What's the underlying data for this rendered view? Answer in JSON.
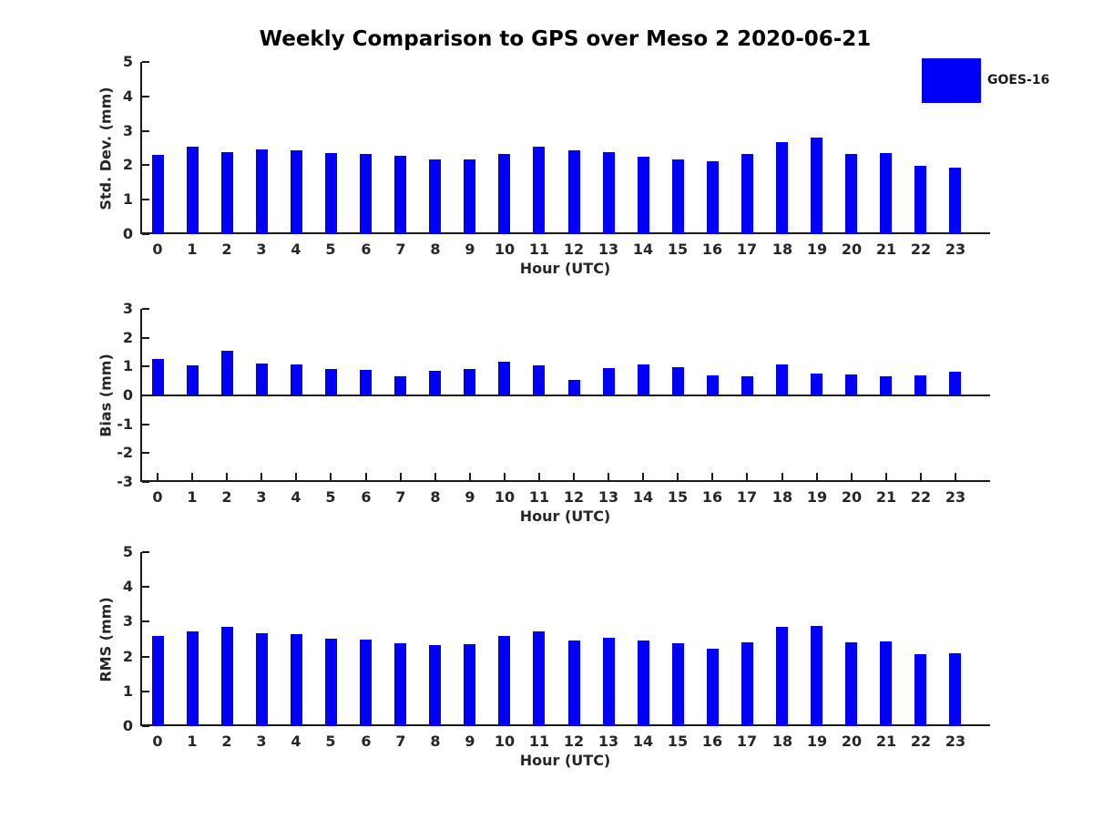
{
  "figure": {
    "title": "Weekly Comparison to GPS over Meso 2 2020-06-21",
    "legend": {
      "label": "GOES-16",
      "swatch_color": "#0000fa"
    },
    "colors": {
      "bar": "#0000fa",
      "axis": "#1a1a1a",
      "text": "#262626",
      "background": "#ffffff"
    }
  },
  "chart_data": [
    {
      "type": "bar",
      "title": "Weekly Comparison to GPS over Meso 2 2020-06-21",
      "series_name": "GOES-16",
      "xlabel": "Hour (UTC)",
      "ylabel": "Std. Dev. (mm)",
      "categories": [
        "0",
        "1",
        "2",
        "3",
        "4",
        "5",
        "6",
        "7",
        "8",
        "9",
        "10",
        "11",
        "12",
        "13",
        "14",
        "15",
        "16",
        "17",
        "18",
        "19",
        "20",
        "21",
        "22",
        "23"
      ],
      "values": [
        2.3,
        2.55,
        2.39,
        2.46,
        2.43,
        2.36,
        2.33,
        2.27,
        2.17,
        2.17,
        2.34,
        2.54,
        2.44,
        2.38,
        2.24,
        2.18,
        2.12,
        2.33,
        2.67,
        2.8,
        2.34,
        2.36,
        1.99,
        1.94
      ],
      "ylim": [
        0,
        5
      ],
      "yticks": [
        0,
        1,
        2,
        3,
        4,
        5
      ],
      "grid": false,
      "legend_position": "top-right"
    },
    {
      "type": "bar",
      "series_name": "GOES-16",
      "xlabel": "Hour (UTC)",
      "ylabel": "Bias (mm)",
      "categories": [
        "0",
        "1",
        "2",
        "3",
        "4",
        "5",
        "6",
        "7",
        "8",
        "9",
        "10",
        "11",
        "12",
        "13",
        "14",
        "15",
        "16",
        "17",
        "18",
        "19",
        "20",
        "21",
        "22",
        "23"
      ],
      "values": [
        1.26,
        1.04,
        1.56,
        1.09,
        1.06,
        0.92,
        0.88,
        0.66,
        0.86,
        0.91,
        1.16,
        1.05,
        0.53,
        0.94,
        1.06,
        0.98,
        0.71,
        0.67,
        1.06,
        0.76,
        0.73,
        0.66,
        0.7,
        0.82
      ],
      "ylim": [
        -3,
        3
      ],
      "yticks": [
        -3,
        -2,
        -1,
        0,
        1,
        2,
        3
      ],
      "grid": false
    },
    {
      "type": "bar",
      "series_name": "GOES-16",
      "xlabel": "Hour (UTC)",
      "ylabel": "RMS (mm)",
      "categories": [
        "0",
        "1",
        "2",
        "3",
        "4",
        "5",
        "6",
        "7",
        "8",
        "9",
        "10",
        "11",
        "12",
        "13",
        "14",
        "15",
        "16",
        "17",
        "18",
        "19",
        "20",
        "21",
        "22",
        "23"
      ],
      "values": [
        2.6,
        2.72,
        2.85,
        2.67,
        2.64,
        2.52,
        2.49,
        2.37,
        2.33,
        2.36,
        2.58,
        2.72,
        2.46,
        2.54,
        2.46,
        2.38,
        2.23,
        2.42,
        2.85,
        2.87,
        2.42,
        2.44,
        2.07,
        2.1
      ],
      "ylim": [
        0,
        5
      ],
      "yticks": [
        0,
        1,
        2,
        3,
        4,
        5
      ],
      "grid": false
    }
  ]
}
